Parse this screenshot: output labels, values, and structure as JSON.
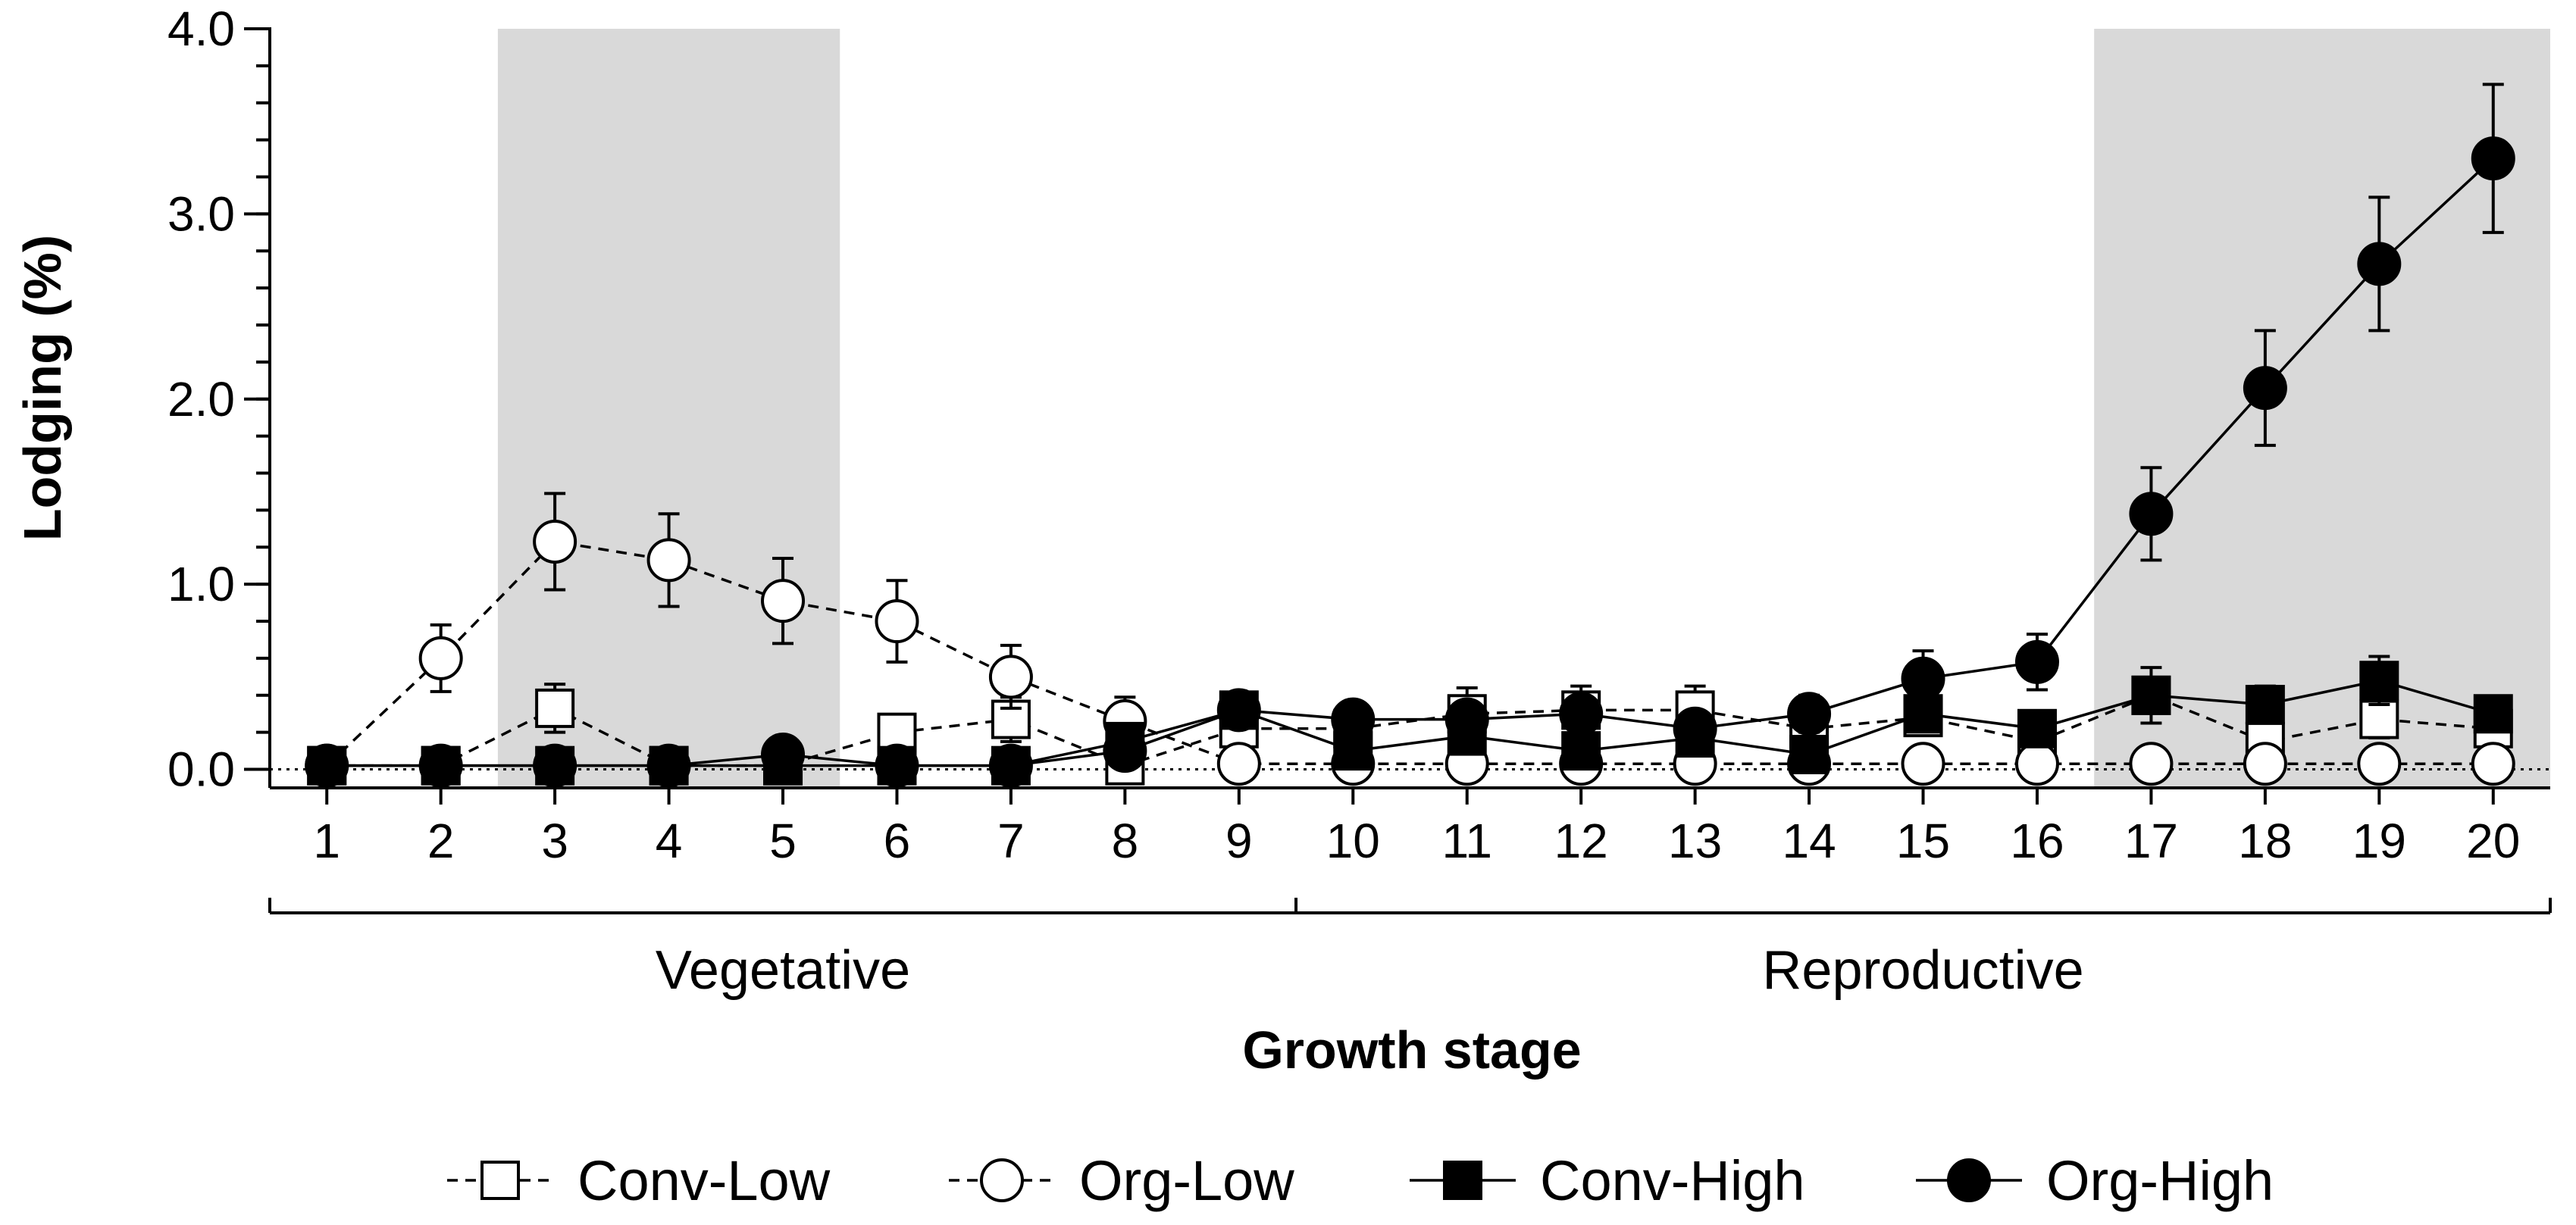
{
  "chart_data": {
    "type": "line",
    "title": "",
    "xlabel": "Growth stage",
    "ylabel": "Lodging (%)",
    "x": [
      1,
      2,
      3,
      4,
      5,
      6,
      7,
      8,
      9,
      10,
      11,
      12,
      13,
      14,
      15,
      16,
      17,
      18,
      19,
      20
    ],
    "xlim": [
      0.5,
      20.5
    ],
    "ylim": [
      -0.1,
      4.0
    ],
    "y_ticks": [
      0.0,
      1.0,
      2.0,
      3.0,
      4.0
    ],
    "y_tick_labels": [
      "0.0",
      "1.0",
      "2.0",
      "3.0",
      "4.0"
    ],
    "y_minor_step": 0.2,
    "reference_line_y": 0.0,
    "shaded_ranges": [
      [
        2.5,
        5.5
      ],
      [
        16.5,
        20.5
      ]
    ],
    "phases": [
      {
        "label": "Vegetative",
        "from": 0.5,
        "to": 9.5
      },
      {
        "label": "Reproductive",
        "from": 9.5,
        "to": 20.5
      }
    ],
    "legend_position": "bottom",
    "series": [
      {
        "name": "Conv-Low",
        "marker": "square",
        "filled": false,
        "line": "dashed",
        "values": [
          0.02,
          0.02,
          0.33,
          0.02,
          0.02,
          0.2,
          0.27,
          0.02,
          0.22,
          0.22,
          0.3,
          0.32,
          0.32,
          0.22,
          0.28,
          0.15,
          0.4,
          0.15,
          0.27,
          0.22
        ],
        "errors": [
          0,
          0,
          0.13,
          0,
          0,
          0,
          0.12,
          0,
          0,
          0,
          0.14,
          0.13,
          0.13,
          0,
          0.08,
          0,
          0.15,
          0.08,
          0.1,
          0.06
        ]
      },
      {
        "name": "Org-Low",
        "marker": "circle",
        "filled": false,
        "line": "dashed",
        "values": [
          0.02,
          0.6,
          1.23,
          1.13,
          0.91,
          0.8,
          0.5,
          0.26,
          0.03,
          0.03,
          0.03,
          0.03,
          0.03,
          0.03,
          0.03,
          0.03,
          0.03,
          0.03,
          0.03,
          0.03
        ],
        "errors": [
          0,
          0.18,
          0.26,
          0.25,
          0.23,
          0.22,
          0.17,
          0.13,
          0,
          0,
          0,
          0,
          0,
          0,
          0,
          0,
          0,
          0,
          0,
          0
        ]
      },
      {
        "name": "Conv-High",
        "marker": "square",
        "filled": true,
        "line": "solid",
        "values": [
          0.02,
          0.02,
          0.02,
          0.02,
          0.02,
          0.02,
          0.02,
          0.15,
          0.32,
          0.1,
          0.18,
          0.1,
          0.17,
          0.08,
          0.3,
          0.22,
          0.4,
          0.35,
          0.48,
          0.3
        ],
        "errors": [
          0,
          0,
          0,
          0,
          0,
          0,
          0,
          0,
          0.05,
          0,
          0,
          0,
          0,
          0,
          0,
          0,
          0,
          0.1,
          0.13,
          0.05
        ]
      },
      {
        "name": "Org-High",
        "marker": "circle",
        "filled": true,
        "line": "solid",
        "values": [
          0.02,
          0.02,
          0.02,
          0.02,
          0.08,
          0.02,
          0.02,
          0.1,
          0.32,
          0.27,
          0.27,
          0.3,
          0.22,
          0.3,
          0.49,
          0.58,
          1.38,
          2.06,
          2.73,
          3.3
        ],
        "errors": [
          0,
          0,
          0,
          0,
          0,
          0,
          0,
          0,
          0.05,
          0.05,
          0.05,
          0.05,
          0,
          0.1,
          0.15,
          0.15,
          0.25,
          0.31,
          0.36,
          0.4
        ]
      }
    ]
  }
}
